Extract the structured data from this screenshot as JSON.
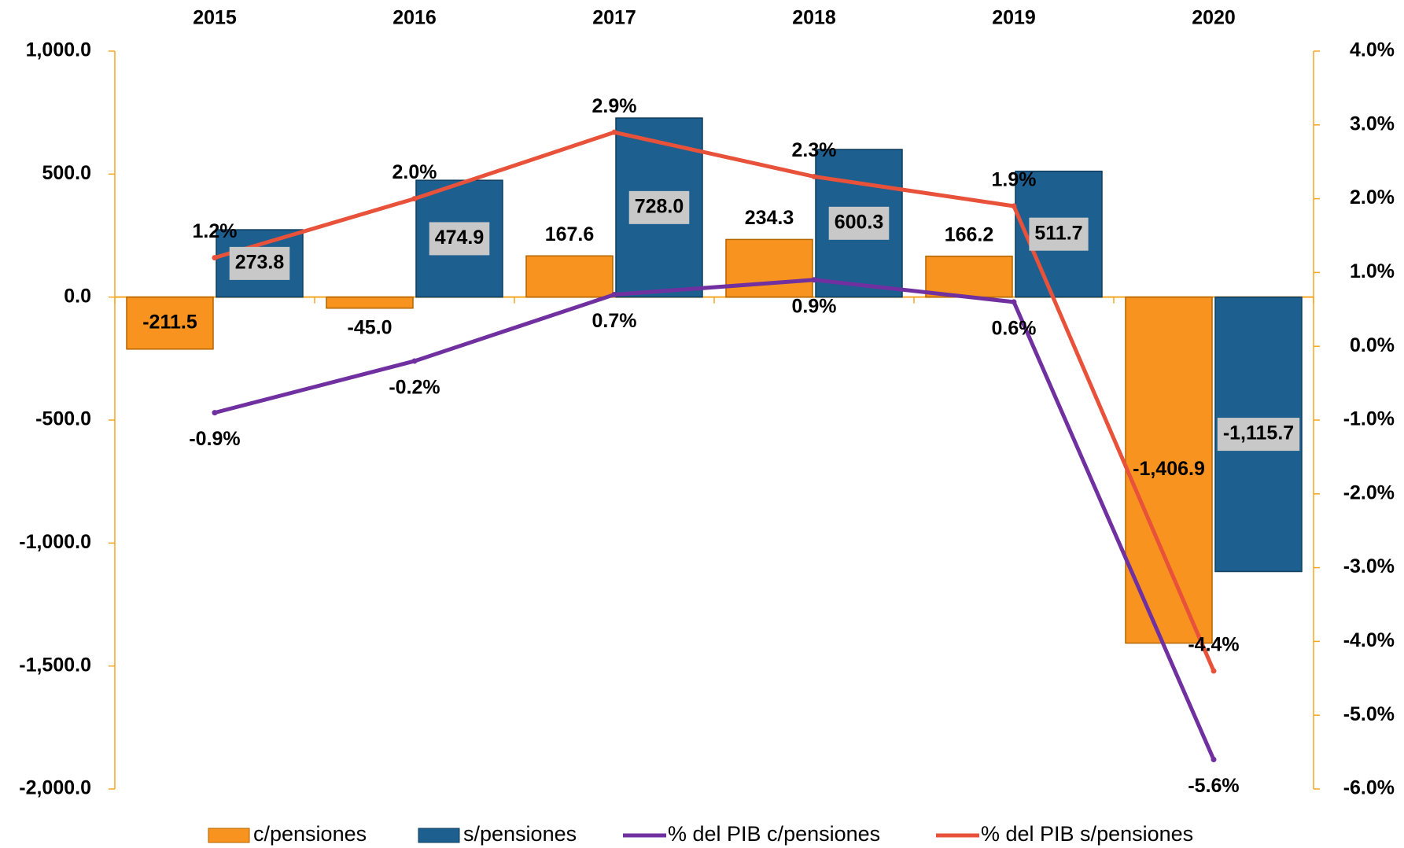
{
  "chart_data": {
    "type": "bar",
    "categories": [
      "2015",
      "2016",
      "2017",
      "2018",
      "2019",
      "2020"
    ],
    "series": [
      {
        "name": "c/pensiones",
        "type": "bar",
        "color": "#f7931e",
        "values": [
          -211.5,
          -45.0,
          167.6,
          234.3,
          166.2,
          -1406.9
        ],
        "value_labels": [
          "-211.5",
          "-45.0",
          "167.6",
          "234.3",
          "166.2",
          "-1,406.9"
        ]
      },
      {
        "name": "s/pensiones",
        "type": "bar",
        "color": "#1d5f8f",
        "values": [
          273.8,
          474.9,
          728.0,
          600.3,
          511.7,
          -1115.7
        ],
        "value_labels": [
          "273.8",
          "474.9",
          "728.0",
          "600.3",
          "511.7",
          "-1,115.7"
        ]
      },
      {
        "name": "% del PIB c/pensiones",
        "type": "line",
        "axis": "y2",
        "color": "#7030a0",
        "values": [
          -0.9,
          -0.2,
          0.7,
          0.9,
          0.6,
          -5.6
        ],
        "value_labels": [
          "-0.9%",
          "-0.2%",
          "0.7%",
          "0.9%",
          "0.6%",
          "-5.6%"
        ]
      },
      {
        "name": "% del PIB s/pensiones",
        "type": "line",
        "axis": "y2",
        "color": "#e8513a",
        "values": [
          1.2,
          2.0,
          2.9,
          2.3,
          1.9,
          -4.4
        ],
        "value_labels": [
          "1.2%",
          "2.0%",
          "2.9%",
          "2.3%",
          "1.9%",
          "-4.4%"
        ]
      }
    ],
    "ylim": [
      -2000,
      1000
    ],
    "yticks": [
      {
        "value": -2000,
        "label": "-2,000.0"
      },
      {
        "value": -1500,
        "label": "-1,500.0"
      },
      {
        "value": -1000,
        "label": "-1,000.0"
      },
      {
        "value": -500,
        "label": "-500.0"
      },
      {
        "value": 0,
        "label": "0.0"
      },
      {
        "value": 500,
        "label": "500.0"
      },
      {
        "value": 1000,
        "label": "1,000.0"
      }
    ],
    "y2lim": [
      -6,
      4
    ],
    "y2ticks": [
      {
        "value": -6,
        "label": "-6.0%"
      },
      {
        "value": -5,
        "label": "-5.0%"
      },
      {
        "value": -4,
        "label": "-4.0%"
      },
      {
        "value": -3,
        "label": "-3.0%"
      },
      {
        "value": -2,
        "label": "-2.0%"
      },
      {
        "value": -1,
        "label": "-1.0%"
      },
      {
        "value": 0,
        "label": "0.0%"
      },
      {
        "value": 1,
        "label": "1.0%"
      },
      {
        "value": 2,
        "label": "2.0%"
      },
      {
        "value": 3,
        "label": "3.0%"
      },
      {
        "value": 4,
        "label": "4.0%"
      }
    ],
    "axis_color": "#f5a623"
  }
}
